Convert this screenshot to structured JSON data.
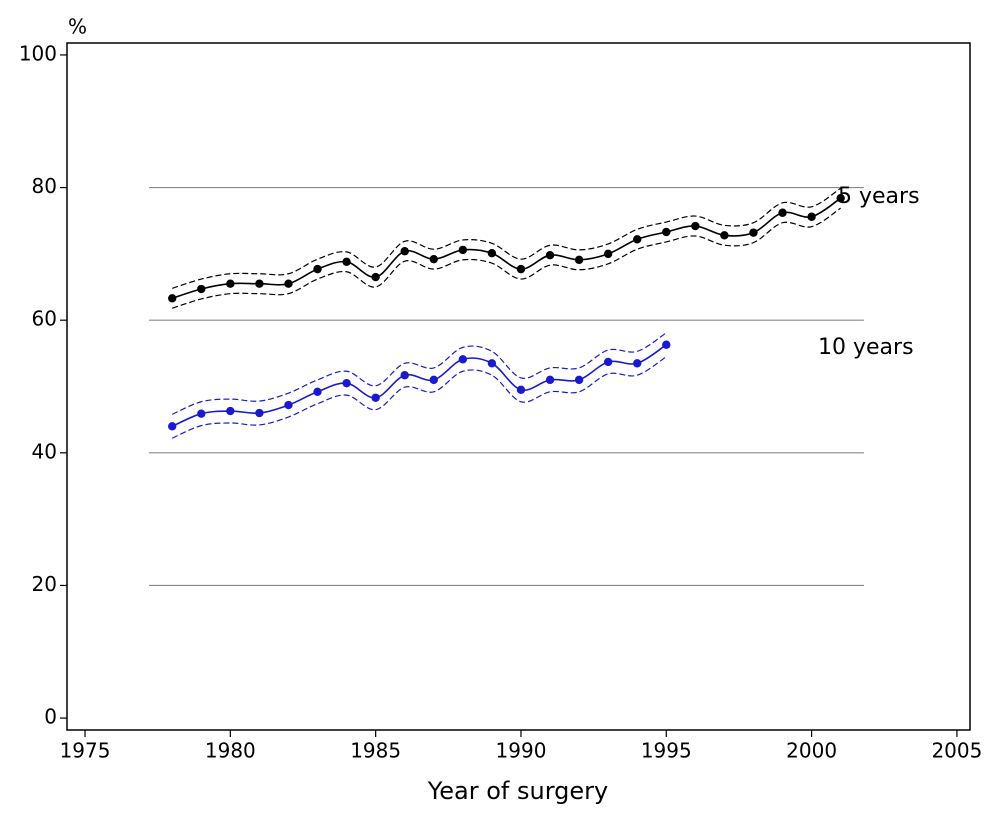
{
  "chart_data": {
    "type": "line",
    "y_unit_label": "%",
    "x_label": "Year of surgery",
    "xlim": [
      1974.38,
      2005.45
    ],
    "ylim": [
      -1.8,
      101.8
    ],
    "xticks": [
      1975,
      1980,
      1985,
      1990,
      1995,
      2000,
      2005
    ],
    "yticks": [
      0,
      20,
      40,
      60,
      80,
      100
    ],
    "grid": true,
    "grid_lines": [
      20,
      40,
      60,
      80
    ],
    "grid_xrange": [
      1977.2,
      2001.8
    ],
    "series": [
      {
        "name": "5 years",
        "color": "#000000",
        "x": [
          1978,
          1979,
          1980,
          1981,
          1982,
          1983,
          1984,
          1985,
          1986,
          1987,
          1988,
          1989,
          1990,
          1991,
          1992,
          1993,
          1994,
          1995,
          1996,
          1997,
          1998,
          1999,
          2000,
          2001
        ],
        "values": [
          63.3,
          64.7,
          65.5,
          65.5,
          65.5,
          67.7,
          68.8,
          66.5,
          70.4,
          69.2,
          70.6,
          70.1,
          67.7,
          69.8,
          69.1,
          70.0,
          72.2,
          73.3,
          74.2,
          72.8,
          73.2,
          76.2,
          75.6,
          78.4
        ],
        "lower": [
          61.8,
          63.2,
          64.0,
          64.0,
          64.0,
          66.2,
          67.3,
          65.0,
          68.9,
          67.7,
          69.1,
          68.6,
          66.2,
          68.3,
          67.6,
          68.5,
          70.7,
          71.8,
          72.7,
          71.3,
          71.7,
          74.7,
          74.1,
          76.9
        ],
        "upper": [
          64.8,
          66.2,
          67.0,
          67.0,
          67.0,
          69.2,
          70.3,
          68.0,
          71.9,
          70.7,
          72.1,
          71.6,
          69.2,
          71.3,
          70.6,
          71.5,
          73.7,
          74.8,
          75.7,
          74.3,
          74.7,
          77.7,
          77.1,
          79.9
        ]
      },
      {
        "name": "10 years",
        "color": "#1a1acc",
        "x": [
          1978,
          1979,
          1980,
          1981,
          1982,
          1983,
          1984,
          1985,
          1986,
          1987,
          1988,
          1989,
          1990,
          1991,
          1992,
          1993,
          1994,
          1995
        ],
        "values": [
          44.0,
          45.9,
          46.3,
          46.0,
          47.2,
          49.2,
          50.5,
          48.3,
          51.7,
          51.0,
          54.1,
          53.5,
          49.5,
          51.0,
          51.0,
          53.7,
          53.5,
          56.3
        ],
        "lower": [
          42.2,
          44.1,
          44.5,
          44.2,
          45.4,
          47.4,
          48.7,
          46.5,
          49.9,
          49.2,
          52.3,
          51.7,
          47.7,
          49.2,
          49.2,
          51.9,
          51.7,
          54.5
        ],
        "upper": [
          45.8,
          47.7,
          48.1,
          47.8,
          49.0,
          51.0,
          52.3,
          50.1,
          53.5,
          52.8,
          55.9,
          55.3,
          51.3,
          52.8,
          52.8,
          55.5,
          55.3,
          58.1
        ]
      }
    ]
  }
}
